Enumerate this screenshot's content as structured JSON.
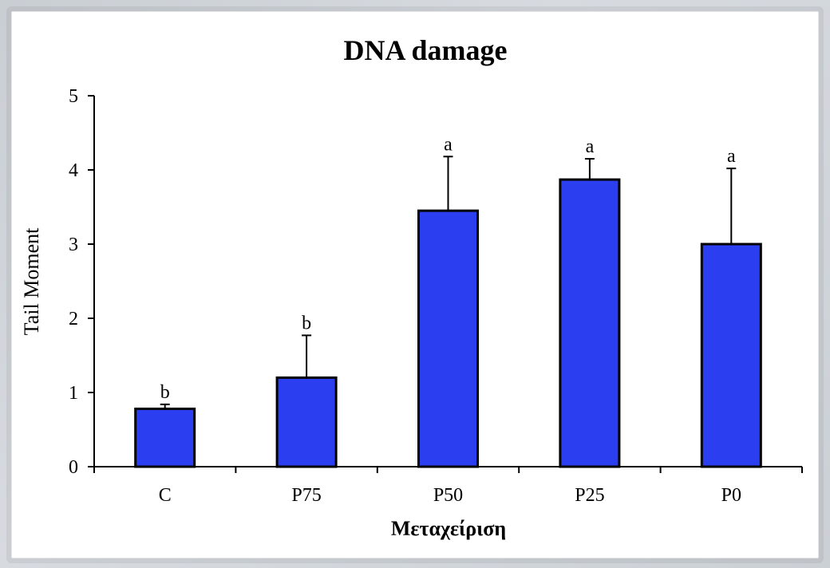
{
  "chart_data": {
    "type": "bar",
    "title": "DNA damage",
    "xlabel": "Μεταχείριση",
    "ylabel": "Tail Moment",
    "categories": [
      "C",
      "P75",
      "P50",
      "P25",
      "P0"
    ],
    "series": [
      {
        "values": [
          0.78,
          1.2,
          3.45,
          3.87,
          3.0
        ],
        "error_upper": [
          0.06,
          0.57,
          0.73,
          0.28,
          1.02
        ],
        "significance": [
          "b",
          "b",
          "a",
          "a",
          "a"
        ]
      }
    ],
    "yticks": [
      "0",
      "1",
      "2",
      "3",
      "4",
      "5"
    ],
    "ylim": [
      0,
      5
    ],
    "grid": false,
    "legend": "none",
    "colors": {
      "bar_fill": "#2b3ff0",
      "bar_stroke": "#000000",
      "axis": "#000000"
    }
  }
}
